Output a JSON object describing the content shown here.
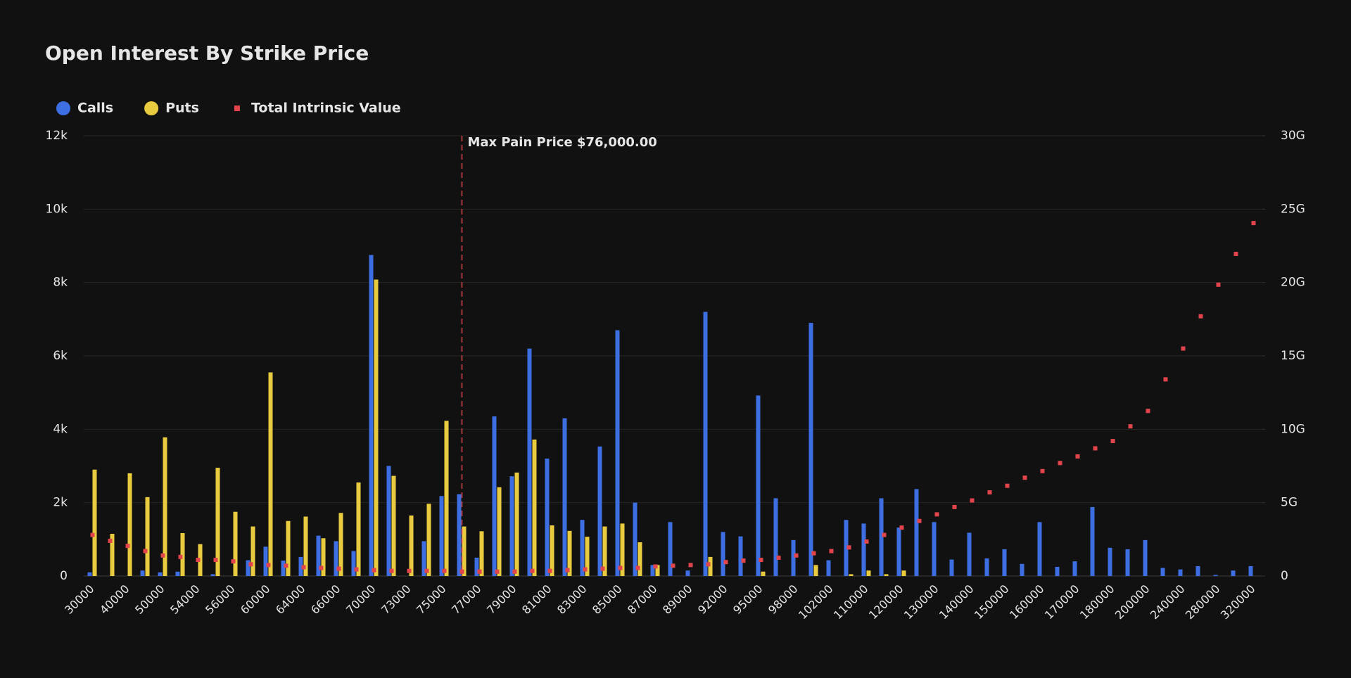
{
  "chart_data": {
    "type": "bar",
    "title": "Open Interest By Strike Price",
    "categories": [
      "30000",
      null,
      "40000",
      null,
      "50000",
      null,
      "54000",
      null,
      "56000",
      null,
      "60000",
      null,
      "64000",
      null,
      "66000",
      null,
      "70000",
      null,
      "73000",
      null,
      "75000",
      null,
      "77000",
      null,
      "79000",
      null,
      "81000",
      null,
      "83000",
      null,
      "85000",
      null,
      "87000",
      null,
      "89000",
      null,
      "92000",
      null,
      "95000",
      null,
      "98000",
      null,
      "102000",
      null,
      "110000",
      null,
      "120000",
      null,
      "130000",
      null,
      "140000",
      null,
      "150000",
      null,
      "160000",
      null,
      "170000",
      null,
      "180000",
      null,
      "200000",
      null,
      "240000",
      null,
      "280000",
      null,
      "320000"
    ],
    "series": [
      {
        "name": "Calls",
        "type": "bar",
        "color": "#3d6fe3",
        "values": [
          100,
          0,
          0,
          150,
          100,
          120,
          0,
          50,
          0,
          430,
          800,
          420,
          520,
          1100,
          950,
          680,
          8750,
          3000,
          0,
          950,
          2180,
          2230,
          500,
          4350,
          2720,
          6200,
          3200,
          4300,
          1530,
          3530,
          6700,
          2000,
          300,
          1470,
          150,
          7200,
          1200,
          1080,
          4920,
          2120,
          980,
          6900,
          430,
          1530,
          1430,
          2120,
          1320,
          2370,
          1470,
          450,
          1180,
          480,
          730,
          330,
          1470,
          250,
          400,
          1880,
          770,
          730,
          980,
          220,
          180,
          270,
          30,
          150,
          270
        ]
      },
      {
        "name": "Puts",
        "type": "bar",
        "color": "#e9cb3f",
        "values": [
          2900,
          1150,
          2800,
          2150,
          3780,
          1170,
          870,
          2950,
          1750,
          1350,
          5550,
          1500,
          1620,
          1030,
          1720,
          2550,
          8080,
          2730,
          1650,
          1970,
          4230,
          1350,
          1220,
          2420,
          2820,
          3720,
          1380,
          1230,
          1070,
          1350,
          1430,
          920,
          300,
          0,
          0,
          520,
          0,
          0,
          120,
          0,
          0,
          300,
          0,
          50,
          150,
          50,
          150,
          0,
          0,
          0,
          0,
          0,
          0,
          0,
          0,
          0,
          0,
          0,
          0,
          0,
          0,
          0,
          0,
          0,
          0,
          0,
          0
        ]
      },
      {
        "name": "Total Intrinsic Value",
        "type": "scatter",
        "axis": "y2",
        "color": "#e2444c",
        "values": [
          2800000000.0,
          2400000000.0,
          2050000000.0,
          1700000000.0,
          1400000000.0,
          1300000000.0,
          1100000000.0,
          1100000000.0,
          1000000000.0,
          800000000.0,
          750000000.0,
          700000000.0,
          600000000.0,
          550000000.0,
          500000000.0,
          450000000.0,
          400000000.0,
          350000000.0,
          350000000.0,
          350000000.0,
          350000000.0,
          300000000.0,
          300000000.0,
          300000000.0,
          300000000.0,
          350000000.0,
          350000000.0,
          400000000.0,
          450000000.0,
          500000000.0,
          550000000.0,
          550000000.0,
          650000000.0,
          700000000.0,
          750000000.0,
          800000000.0,
          950000000.0,
          1050000000.0,
          1100000000.0,
          1250000000.0,
          1400000000.0,
          1550000000.0,
          1700000000.0,
          1950000000.0,
          2350000000.0,
          2800000000.0,
          3300000000.0,
          3750000000.0,
          4200000000.0,
          4700000000.0,
          5150000000.0,
          5700000000.0,
          6150000000.0,
          6700000000.0,
          7150000000.0,
          7700000000.0,
          8150000000.0,
          8700000000.0,
          9200000000.0,
          10200000000.0,
          11250000000.0,
          13400000000.0,
          15500000000.0,
          17700000000.0,
          19850000000.0,
          21950000000.0,
          24050000000.0
        ]
      }
    ],
    "ylim": [
      0,
      12000
    ],
    "yticks": [
      0,
      {
        "value": 2000,
        "label": "2k"
      },
      {
        "value": 4000,
        "label": "4k"
      },
      {
        "value": 6000,
        "label": "6k"
      },
      {
        "value": 8000,
        "label": "8k"
      },
      {
        "value": 10000,
        "label": "10k"
      },
      {
        "value": 12000,
        "label": "12k"
      }
    ],
    "y2lim": [
      0,
      30000000000
    ],
    "y2ticks": [
      0,
      {
        "value": 5000000000,
        "label": "5G"
      },
      {
        "value": 10000000000,
        "label": "10G"
      },
      {
        "value": 15000000000,
        "label": "15G"
      },
      {
        "value": 20000000000,
        "label": "20G"
      },
      {
        "value": 25000000000,
        "label": "25G"
      },
      {
        "value": 30000000000,
        "label": "30G"
      }
    ],
    "grid": true,
    "legend": "top-left",
    "annotation": {
      "text": "Max Pain Price $76,000.00",
      "value": 76000,
      "color": "#e2444c"
    }
  }
}
